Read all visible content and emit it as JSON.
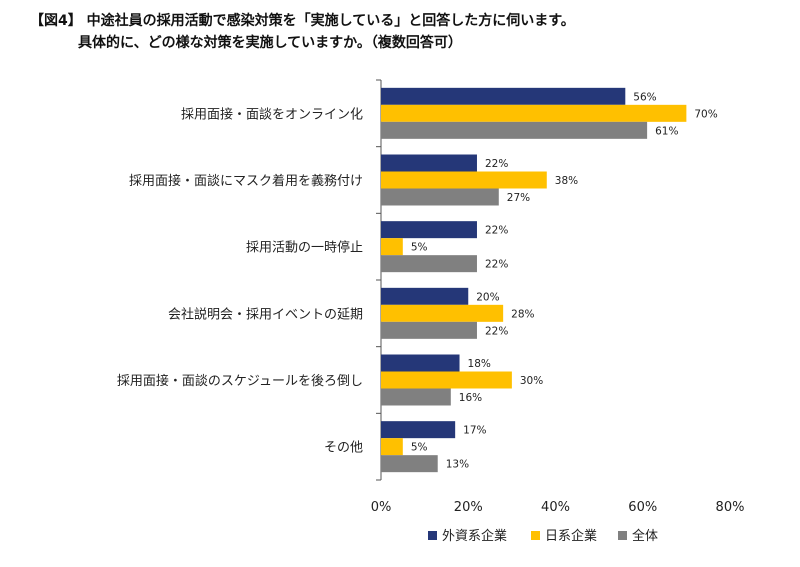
{
  "title_lines": [
    "【図4】 中途社員の採用活動で感染対策を「実施している」と回答した方に伺います。",
    "具体的に、どの様な対策を実施していますか。（複数回答可）"
  ],
  "colors": {
    "series_1": "#253778",
    "series_2": "#FFC000",
    "series_3": "#808080",
    "axis": "#555555"
  },
  "chart_data": {
    "type": "bar",
    "orientation": "horizontal",
    "title": "【図4】 中途社員の採用活動で感染対策を「実施している」と回答した方に伺います。具体的に、どの様な対策を実施していますか。（複数回答可）",
    "categories": [
      "採用面接・面談をオンライン化",
      "採用面接・面談にマスク着用を義務付け",
      "採用活動の一時停止",
      "会社説明会・採用イベントの延期",
      "採用面接・面談のスケジュールを後ろ倒し",
      "その他"
    ],
    "series": [
      {
        "name": "外資系企業",
        "values": [
          56,
          22,
          22,
          20,
          18,
          17
        ]
      },
      {
        "name": "日系企業",
        "values": [
          70,
          38,
          5,
          28,
          30,
          5
        ]
      },
      {
        "name": "全体",
        "values": [
          61,
          27,
          22,
          22,
          16,
          13
        ]
      }
    ],
    "xlim": [
      0,
      80
    ],
    "xticks": [
      "0%",
      "20%",
      "40%",
      "60%",
      "80%"
    ],
    "value_suffix": "%",
    "grid": false,
    "legend": "bottom"
  }
}
